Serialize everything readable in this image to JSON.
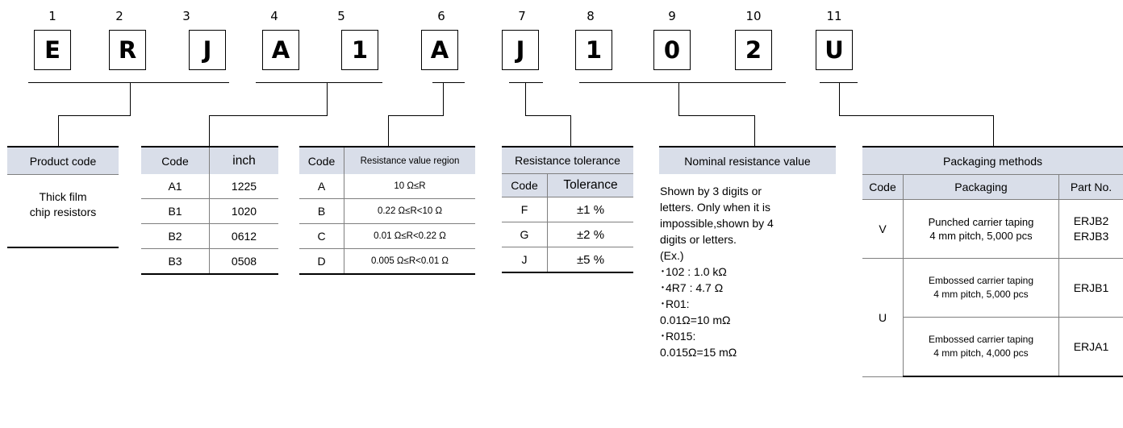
{
  "part_number": {
    "positions": [
      "1",
      "2",
      "3",
      "4",
      "5",
      "6",
      "7",
      "8",
      "9",
      "10",
      "11"
    ],
    "characters": [
      "E",
      "R",
      "J",
      "A",
      "1",
      "A",
      "J",
      "1",
      "0",
      "2",
      "U"
    ]
  },
  "product_code": {
    "header": "Product code",
    "value_line1": "Thick film",
    "value_line2": "chip resistors"
  },
  "size": {
    "headers": [
      "Code",
      "inch"
    ],
    "rows": [
      [
        "A1",
        "1225"
      ],
      [
        "B1",
        "1020"
      ],
      [
        "B2",
        "0612"
      ],
      [
        "B3",
        "0508"
      ]
    ]
  },
  "resistance_region": {
    "headers": [
      "Code",
      "Resistance value region"
    ],
    "rows": [
      [
        "A",
        "10 Ω≤R"
      ],
      [
        "B",
        "0.22 Ω≤R<10 Ω"
      ],
      [
        "C",
        "0.01 Ω≤R<0.22 Ω"
      ],
      [
        "D",
        "0.005 Ω≤R<0.01 Ω"
      ]
    ]
  },
  "tolerance": {
    "title": "Resistance tolerance",
    "headers": [
      "Code",
      "Tolerance"
    ],
    "rows": [
      [
        "F",
        "±1 %"
      ],
      [
        "G",
        "±2 %"
      ],
      [
        "J",
        "±5 %"
      ]
    ]
  },
  "nominal": {
    "header": "Nominal resistance value",
    "lines": [
      "Shown by 3 digits or",
      "letters. Only when it is",
      "impossible,shown by 4",
      "digits or letters.",
      "(Ex.)",
      "･102 : 1.0 kΩ",
      "･4R7 : 4.7 Ω",
      "･R01:",
      " 0.01Ω=10 mΩ",
      "･R015:",
      "0.015Ω=15 mΩ"
    ]
  },
  "packaging": {
    "title": "Packaging methods",
    "headers": [
      "Code",
      "Packaging",
      "Part No."
    ],
    "v_code": "V",
    "v_pack_line1": "Punched carrier taping",
    "v_pack_line2": "4 mm pitch, 5,000 pcs",
    "v_part_line1": "ERJB2",
    "v_part_line2": "ERJB3",
    "u_code": "U",
    "u1_pack_line1": "Embossed carrier taping",
    "u1_pack_line2": "4 mm pitch, 5,000 pcs",
    "u1_part": "ERJB1",
    "u2_pack_line1": "Embossed carrier taping",
    "u2_pack_line2": "4 mm pitch, 4,000 pcs",
    "u2_part": "ERJA1"
  }
}
